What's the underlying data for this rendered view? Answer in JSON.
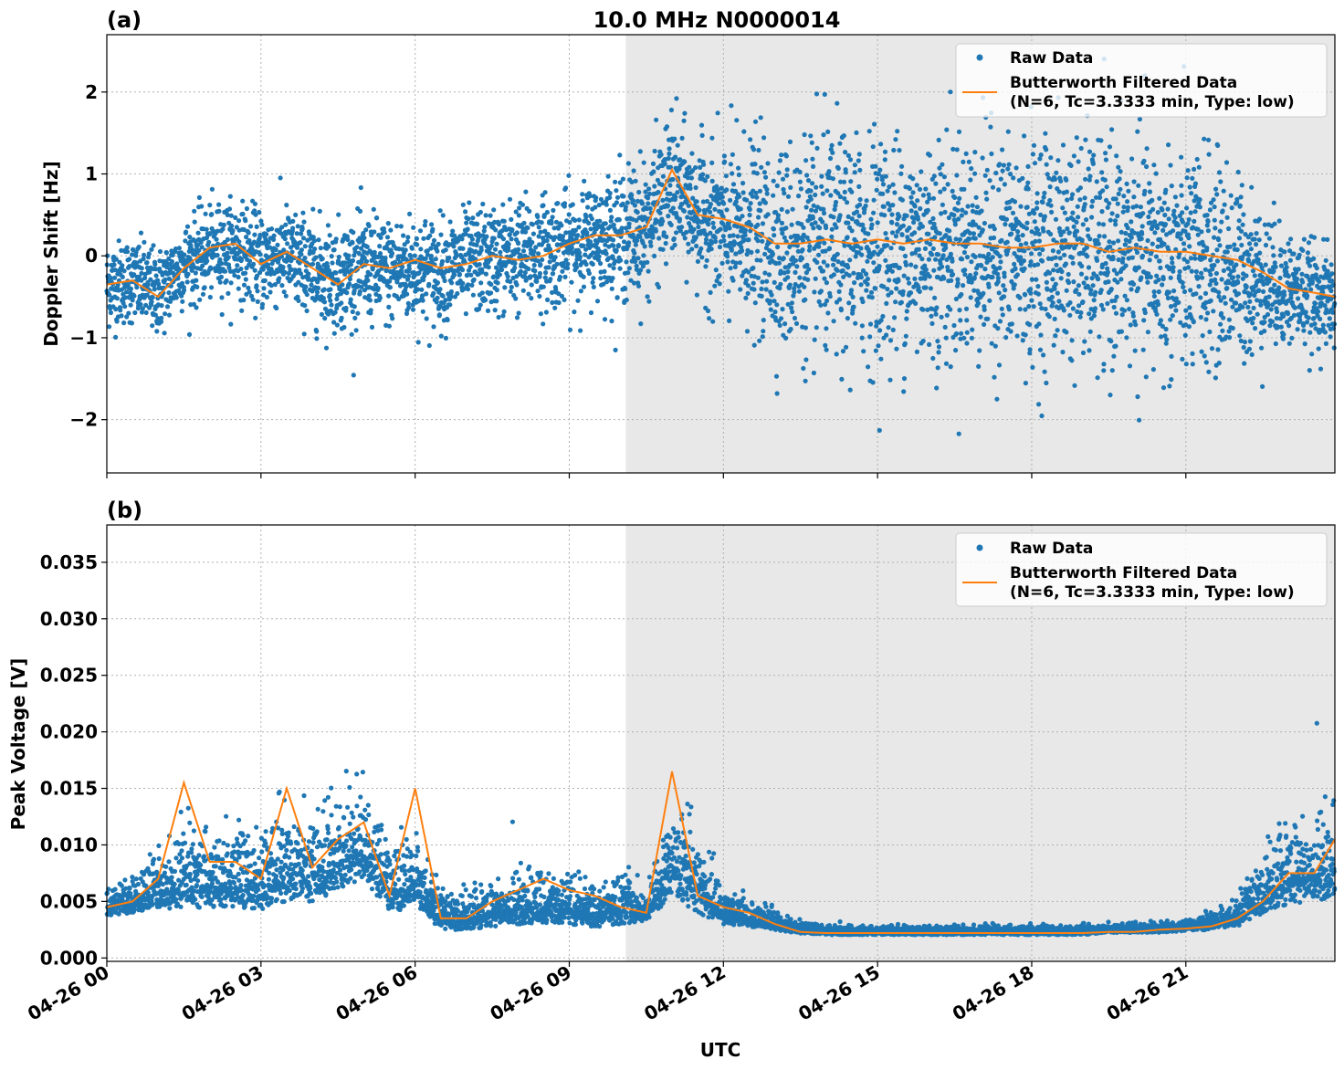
{
  "figure": {
    "title": "10.0 MHz N0000014",
    "xlabel": "UTC"
  },
  "colors": {
    "raw": "#1f77b4",
    "filtered": "#ff7f0e",
    "night_shade": "#e8e8e8",
    "grid": "#b0b0b0"
  },
  "chart_data": [
    {
      "type": "scatter",
      "panel_label": "(a)",
      "ylabel": "Doppler Shift [Hz]",
      "x_unit": "hours UTC since 04-26 00",
      "xlim": [
        0,
        23.9
      ],
      "ylim": [
        -2.65,
        2.7
      ],
      "x_ticks": [
        0,
        3,
        6,
        9,
        12,
        15,
        18,
        21
      ],
      "y_ticks": [
        -2,
        -1,
        0,
        1,
        2
      ],
      "y_tick_labels": [
        "−2",
        "−1",
        "0",
        "1",
        "2"
      ],
      "shaded_x_range": [
        10.1,
        23.9
      ],
      "grid": true,
      "legend_position": "top-right",
      "legend": [
        "Raw Data",
        "Butterworth Filtered Data",
        "(N=6, Tc=3.3333 min, Type: low)"
      ],
      "series": [
        {
          "name": "Raw Data",
          "kind": "points",
          "x": [
            0,
            0.5,
            1,
            1.5,
            2,
            2.5,
            3,
            3.5,
            4,
            4.5,
            5,
            5.5,
            6,
            6.5,
            7,
            7.5,
            8,
            8.5,
            9,
            9.5,
            10,
            10.5,
            11,
            11.5,
            12,
            12.5,
            13,
            13.5,
            14,
            14.5,
            15,
            15.5,
            16,
            16.5,
            17,
            17.5,
            18,
            18.5,
            19,
            19.5,
            20,
            20.5,
            21,
            21.5,
            22,
            22.5,
            23,
            23.5,
            23.9
          ],
          "center": [
            -0.35,
            -0.3,
            -0.45,
            -0.1,
            0.05,
            0.1,
            -0.05,
            0.0,
            -0.2,
            -0.25,
            -0.15,
            -0.2,
            -0.15,
            -0.2,
            -0.1,
            -0.05,
            0.0,
            0.05,
            0.1,
            0.2,
            0.25,
            0.35,
            0.85,
            0.5,
            0.3,
            0.3,
            0.1,
            0.1,
            0.1,
            0.1,
            0.1,
            0.1,
            0.1,
            0.1,
            0.1,
            0.05,
            0.05,
            0.1,
            0.05,
            0.0,
            0.0,
            -0.05,
            -0.1,
            -0.1,
            -0.15,
            -0.3,
            -0.4,
            -0.5,
            -0.55
          ],
          "spread": [
            0.6,
            0.6,
            0.6,
            0.6,
            0.65,
            0.65,
            0.7,
            0.7,
            0.75,
            0.75,
            0.75,
            0.75,
            0.75,
            0.75,
            0.75,
            0.75,
            0.8,
            0.8,
            0.8,
            0.8,
            0.9,
            0.95,
            1.0,
            0.95,
            1.2,
            1.3,
            1.4,
            1.5,
            1.6,
            1.6,
            1.6,
            1.6,
            1.6,
            1.6,
            1.6,
            1.6,
            1.6,
            1.6,
            1.6,
            1.6,
            1.6,
            1.6,
            1.6,
            1.5,
            1.3,
            1.0,
            0.8,
            0.7,
            0.7
          ]
        },
        {
          "name": "Butterworth Filtered Data",
          "kind": "line",
          "x": [
            0,
            0.5,
            1,
            1.5,
            2,
            2.5,
            3,
            3.5,
            4,
            4.5,
            5,
            5.5,
            6,
            6.5,
            7,
            7.5,
            8,
            8.5,
            9,
            9.5,
            10,
            10.5,
            11,
            11.5,
            12,
            12.5,
            13,
            13.5,
            14,
            14.5,
            15,
            15.5,
            16,
            16.5,
            17,
            17.5,
            18,
            18.5,
            19,
            19.5,
            20,
            20.5,
            21,
            21.5,
            22,
            22.5,
            23,
            23.5,
            23.9
          ],
          "y": [
            -0.35,
            -0.3,
            -0.5,
            -0.15,
            0.1,
            0.15,
            -0.1,
            0.05,
            -0.15,
            -0.35,
            -0.1,
            -0.15,
            -0.05,
            -0.15,
            -0.1,
            0.0,
            -0.05,
            0.0,
            0.15,
            0.25,
            0.25,
            0.35,
            1.05,
            0.5,
            0.45,
            0.35,
            0.15,
            0.15,
            0.2,
            0.15,
            0.2,
            0.15,
            0.2,
            0.15,
            0.15,
            0.1,
            0.1,
            0.15,
            0.15,
            0.05,
            0.1,
            0.05,
            0.05,
            0.0,
            -0.05,
            -0.2,
            -0.4,
            -0.45,
            -0.5
          ]
        }
      ]
    },
    {
      "type": "scatter",
      "panel_label": "(b)",
      "ylabel": "Peak Voltage [V]",
      "x_unit": "hours UTC since 04-26 00",
      "xlim": [
        0,
        23.9
      ],
      "ylim": [
        -0.0003,
        0.0383
      ],
      "x_ticks": [
        0,
        3,
        6,
        9,
        12,
        15,
        18,
        21
      ],
      "x_tick_labels": [
        "04-26 00",
        "04-26 03",
        "04-26 06",
        "04-26 09",
        "04-26 12",
        "04-26 15",
        "04-26 18",
        "04-26 21"
      ],
      "y_ticks": [
        0.0,
        0.005,
        0.01,
        0.015,
        0.02,
        0.025,
        0.03,
        0.035
      ],
      "y_tick_labels": [
        "0.000",
        "0.005",
        "0.010",
        "0.015",
        "0.020",
        "0.025",
        "0.030",
        "0.035"
      ],
      "shaded_x_range": [
        10.1,
        23.9
      ],
      "grid": true,
      "legend_position": "top-right",
      "legend": [
        "Raw Data",
        "Butterworth Filtered Data",
        "(N=6, Tc=3.3333 min, Type: low)"
      ],
      "series": [
        {
          "name": "Raw Data",
          "kind": "points",
          "x": [
            0,
            0.5,
            1,
            1.5,
            2,
            2.5,
            3,
            3.5,
            4,
            4.5,
            5,
            5.5,
            6,
            6.5,
            7,
            7.5,
            8,
            8.5,
            9,
            9.5,
            10,
            10.5,
            11,
            11.5,
            12,
            12.5,
            13,
            13.5,
            14,
            14.5,
            15,
            15.5,
            16,
            16.5,
            17,
            17.5,
            18,
            18.5,
            19,
            19.5,
            20,
            20.5,
            21,
            21.5,
            22,
            22.5,
            23,
            23.5,
            23.9
          ],
          "center": [
            0.0045,
            0.005,
            0.006,
            0.0065,
            0.0065,
            0.0065,
            0.0065,
            0.0075,
            0.0075,
            0.0085,
            0.0095,
            0.006,
            0.0065,
            0.0035,
            0.0035,
            0.004,
            0.0045,
            0.0045,
            0.0045,
            0.004,
            0.0045,
            0.004,
            0.0085,
            0.006,
            0.004,
            0.0035,
            0.003,
            0.0025,
            0.0023,
            0.0023,
            0.0023,
            0.0023,
            0.0023,
            0.0023,
            0.0023,
            0.0023,
            0.0023,
            0.0023,
            0.0023,
            0.0025,
            0.0025,
            0.0025,
            0.0027,
            0.003,
            0.0035,
            0.0055,
            0.007,
            0.0075,
            0.008
          ],
          "spread": [
            0.0015,
            0.002,
            0.003,
            0.0045,
            0.004,
            0.004,
            0.0045,
            0.005,
            0.005,
            0.005,
            0.005,
            0.004,
            0.004,
            0.002,
            0.002,
            0.0025,
            0.003,
            0.003,
            0.003,
            0.0025,
            0.003,
            0.0015,
            0.006,
            0.004,
            0.002,
            0.0015,
            0.001,
            0.0007,
            0.0005,
            0.0005,
            0.0005,
            0.0005,
            0.0005,
            0.0005,
            0.0005,
            0.0005,
            0.0005,
            0.0005,
            0.0005,
            0.0005,
            0.0005,
            0.0005,
            0.0006,
            0.001,
            0.0015,
            0.003,
            0.0045,
            0.005,
            0.005
          ]
        },
        {
          "name": "Butterworth Filtered Data",
          "kind": "line",
          "x": [
            0,
            0.5,
            1,
            1.5,
            2,
            2.5,
            3,
            3.5,
            4,
            4.5,
            5,
            5.5,
            6,
            6.5,
            7,
            7.5,
            8,
            8.5,
            9,
            9.5,
            10,
            10.5,
            11,
            11.5,
            12,
            12.5,
            13,
            13.5,
            14,
            14.5,
            15,
            15.5,
            16,
            16.5,
            17,
            17.5,
            18,
            18.5,
            19,
            19.5,
            20,
            20.5,
            21,
            21.5,
            22,
            22.5,
            23,
            23.5,
            23.9
          ],
          "y": [
            0.0045,
            0.005,
            0.007,
            0.0155,
            0.0085,
            0.0085,
            0.007,
            0.015,
            0.008,
            0.0105,
            0.012,
            0.0055,
            0.015,
            0.0035,
            0.0035,
            0.005,
            0.006,
            0.007,
            0.006,
            0.0055,
            0.0045,
            0.004,
            0.0165,
            0.0055,
            0.0045,
            0.004,
            0.003,
            0.0023,
            0.0022,
            0.0022,
            0.0022,
            0.0022,
            0.0022,
            0.0022,
            0.0022,
            0.0022,
            0.0022,
            0.0022,
            0.0022,
            0.0023,
            0.0023,
            0.0025,
            0.0026,
            0.0028,
            0.0035,
            0.005,
            0.0075,
            0.0075,
            0.0105
          ]
        }
      ]
    }
  ]
}
